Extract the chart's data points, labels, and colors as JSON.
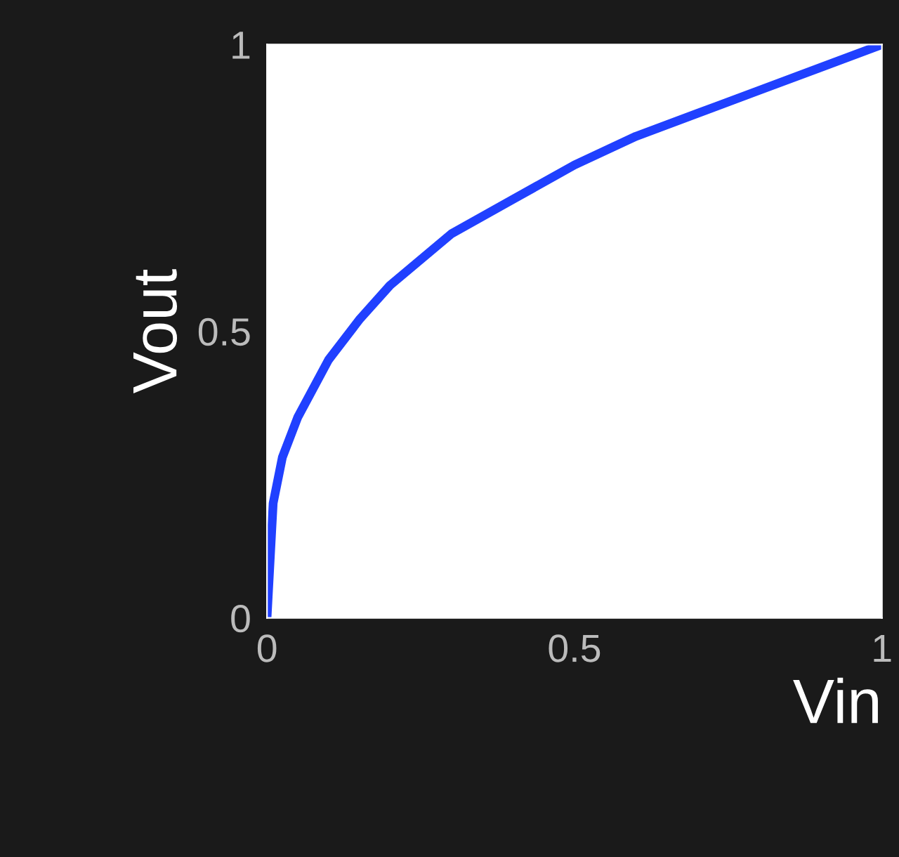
{
  "chart_data": {
    "type": "line",
    "xlabel": "Vin",
    "ylabel": "Vout",
    "x": [
      0,
      0.01,
      0.025,
      0.05,
      0.1,
      0.15,
      0.2,
      0.3,
      0.4,
      0.5,
      0.6,
      0.7,
      0.8,
      0.9,
      1.0
    ],
    "series": [
      {
        "color": "#2040ff",
        "values": [
          0,
          0.2,
          0.28,
          0.35,
          0.45,
          0.52,
          0.58,
          0.67,
          0.73,
          0.79,
          0.84,
          0.88,
          0.92,
          0.96,
          1.0
        ]
      }
    ],
    "xlim": [
      0,
      1
    ],
    "ylim": [
      0,
      1
    ],
    "xticks": [
      0,
      0.5,
      1
    ],
    "yticks": [
      0,
      0.5,
      1
    ],
    "grid": false,
    "legend": false,
    "marker": "none",
    "line_style": "solid"
  }
}
